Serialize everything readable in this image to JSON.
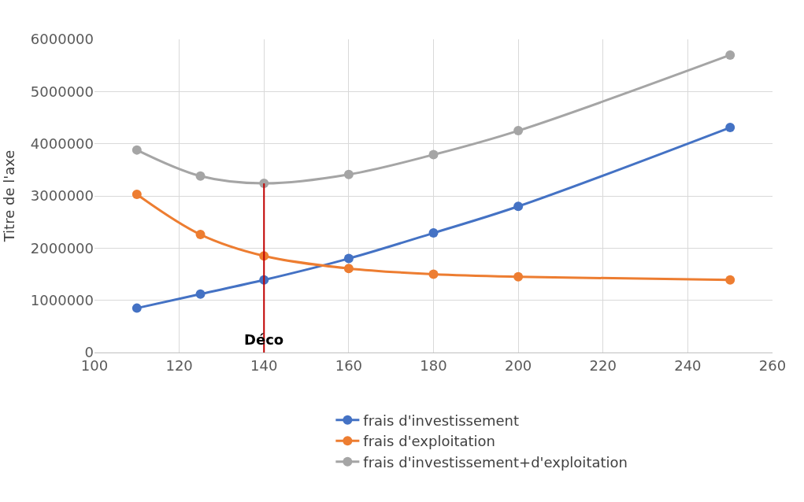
{
  "chart_data": {
    "type": "line",
    "ylabel": "Titre de l'axe",
    "x": [
      110,
      125,
      140,
      160,
      180,
      200,
      250
    ],
    "series": [
      {
        "name": "frais d'investissement",
        "color": "#4472c4",
        "values": [
          850000,
          1120000,
          1390000,
          1800000,
          2290000,
          2800000,
          4310000
        ]
      },
      {
        "name": "frais d'exploitation",
        "color": "#ed7d31",
        "values": [
          3030000,
          2260000,
          1850000,
          1610000,
          1500000,
          1450000,
          1390000
        ]
      },
      {
        "name": "frais d'investissement+d'exploitation",
        "color": "#a5a5a5",
        "values": [
          3880000,
          3380000,
          3240000,
          3410000,
          3790000,
          4250000,
          5700000
        ]
      }
    ],
    "xlim": [
      100,
      260
    ],
    "xticks": [
      100,
      120,
      140,
      160,
      180,
      200,
      220,
      240,
      260
    ],
    "ylim": [
      0,
      6000000
    ],
    "yticks": [
      0,
      1000000,
      2000000,
      3000000,
      4000000,
      5000000,
      6000000
    ],
    "ref_lines": [
      {
        "axis": "x",
        "value": 140,
        "label": "Déco",
        "color": "#c00000"
      }
    ],
    "grid": true,
    "legend": "bottom",
    "marker": "circle",
    "line_style": "solid"
  }
}
